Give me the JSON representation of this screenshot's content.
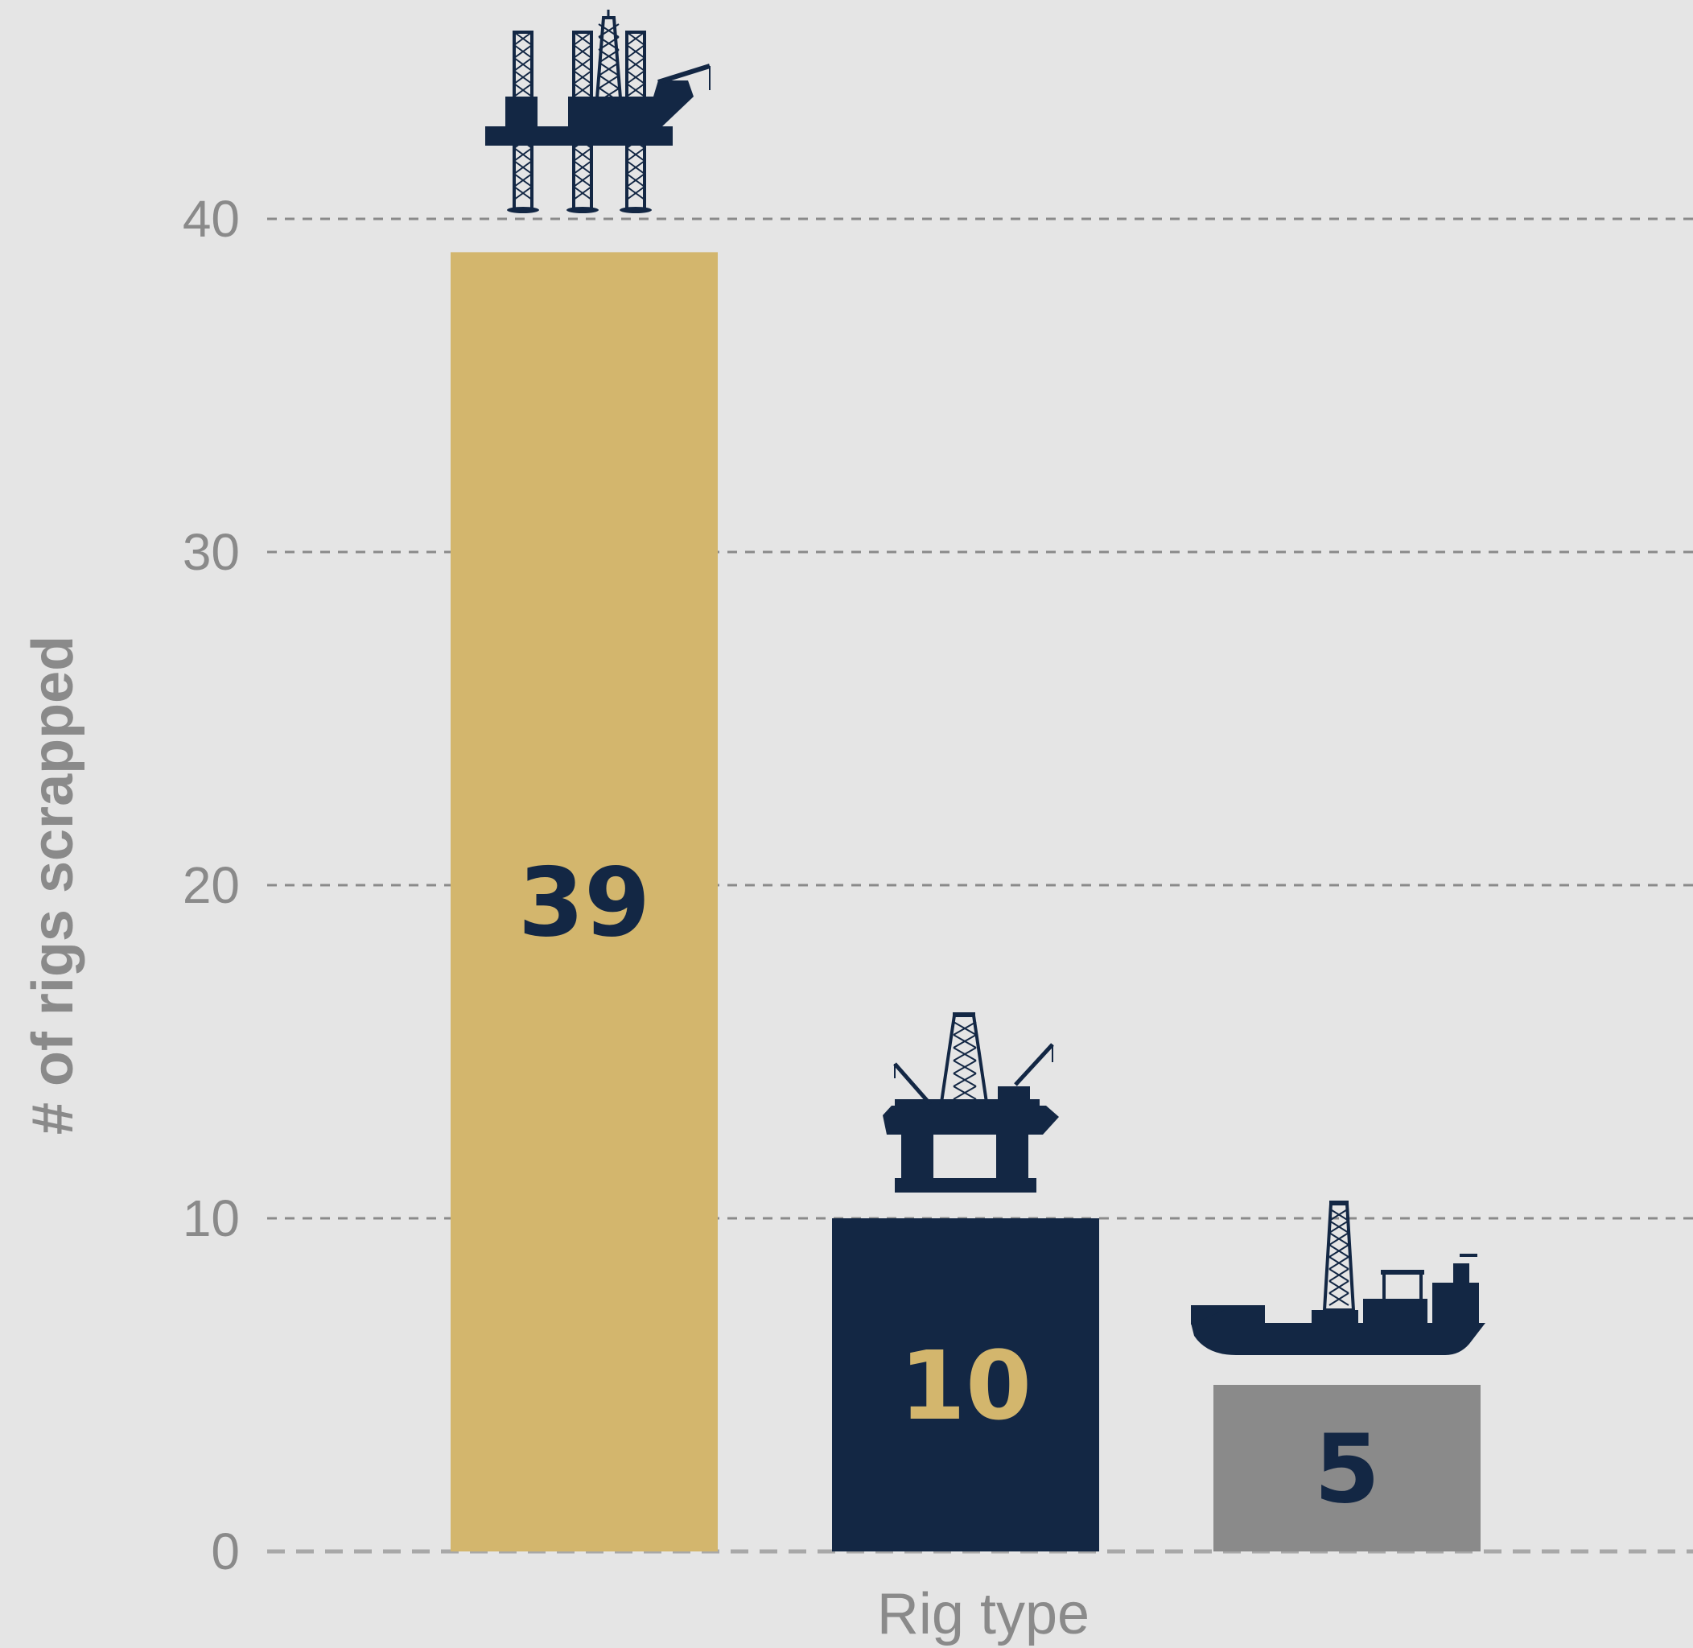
{
  "chart_data": {
    "type": "bar",
    "title": "",
    "xlabel": "Rig type",
    "ylabel": "# of rigs scrapped",
    "ylim": [
      0,
      40
    ],
    "yticks": [
      0,
      10,
      20,
      30,
      40
    ],
    "grid": true,
    "categories": [
      "",
      "",
      ""
    ],
    "values": [
      39,
      10,
      5
    ],
    "data_labels": [
      "39",
      "10",
      "5"
    ],
    "bar_colors": [
      "#d3b66d",
      "#132744",
      "#8a8a8a"
    ],
    "label_colors": [
      "#132744",
      "#d3b66d",
      "#132744"
    ],
    "icons": [
      "jackup-rig-icon",
      "semisubmersible-rig-icon",
      "drillship-icon"
    ]
  },
  "colors": {
    "background": "#e5e5e5",
    "grid": "#8a8a8a",
    "axis_text": "#8a8a8a",
    "icon": "#132744"
  }
}
